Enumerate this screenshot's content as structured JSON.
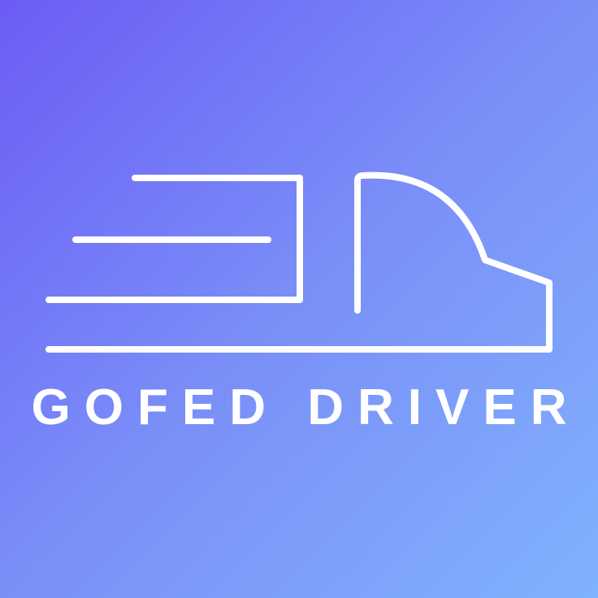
{
  "brand": {
    "name": "GOFED DRIVER",
    "logo_icon": "truck-speed-lines-icon"
  },
  "colors": {
    "gradient_start": "#6b5cf5",
    "gradient_end": "#80b2fd",
    "foreground": "#ffffff"
  }
}
